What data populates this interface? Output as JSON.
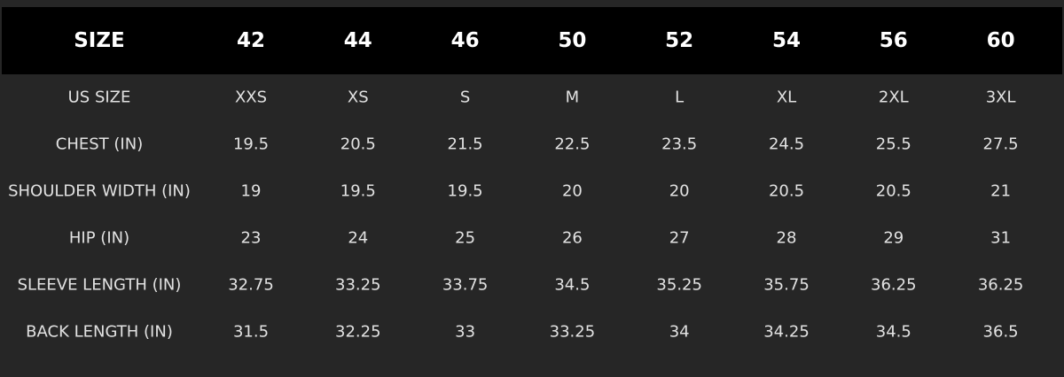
{
  "table": {
    "header": [
      "SIZE",
      "42",
      "44",
      "46",
      "50",
      "52",
      "54",
      "56",
      "60"
    ],
    "rows": [
      [
        "US SIZE",
        "XXS",
        "XS",
        "S",
        "M",
        "L",
        "XL",
        "2XL",
        "3XL"
      ],
      [
        "CHEST (IN)",
        "19.5",
        "20.5",
        "21.5",
        "22.5",
        "23.5",
        "24.5",
        "25.5",
        "27.5"
      ],
      [
        "SHOULDER WIDTH (IN)",
        "19",
        "19.5",
        "19.5",
        "20",
        "20",
        "20.5",
        "20.5",
        "21"
      ],
      [
        "HIP (IN)",
        "23",
        "24",
        "25",
        "26",
        "27",
        "28",
        "29",
        "31"
      ],
      [
        "SLEEVE LENGTH (IN)",
        "32.75",
        "33.25",
        "33.75",
        "34.5",
        "35.25",
        "35.75",
        "36.25",
        "36.25"
      ],
      [
        "BACK LENGTH (IN)",
        "31.5",
        "32.25",
        "33",
        "33.25",
        "34",
        "34.25",
        "34.5",
        "36.5"
      ]
    ]
  }
}
